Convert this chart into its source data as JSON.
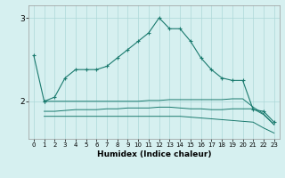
{
  "xlabel": "Humidex (Indice chaleur)",
  "x": [
    0,
    1,
    2,
    3,
    4,
    5,
    6,
    7,
    8,
    9,
    10,
    11,
    12,
    13,
    14,
    15,
    16,
    17,
    18,
    19,
    20,
    21,
    22,
    23
  ],
  "line1": [
    2.55,
    2.0,
    null,
    null,
    null,
    null,
    null,
    null,
    null,
    null,
    null,
    null,
    null,
    null,
    null,
    null,
    null,
    null,
    null,
    null,
    null,
    null,
    null,
    null
  ],
  "line2": [
    null,
    2.0,
    2.05,
    2.28,
    2.38,
    2.38,
    2.38,
    2.42,
    2.52,
    2.62,
    2.72,
    2.82,
    3.0,
    2.87,
    2.87,
    2.72,
    2.52,
    2.38,
    2.28,
    2.25,
    2.25,
    1.9,
    1.88,
    1.75
  ],
  "line3": [
    null,
    1.82,
    1.82,
    1.82,
    1.82,
    1.82,
    1.82,
    1.82,
    1.82,
    1.82,
    1.82,
    1.82,
    1.82,
    1.82,
    1.82,
    1.81,
    1.8,
    1.79,
    1.78,
    1.77,
    1.76,
    1.75,
    1.68,
    1.62
  ],
  "line4": [
    null,
    1.88,
    1.88,
    1.89,
    1.9,
    1.9,
    1.9,
    1.91,
    1.91,
    1.92,
    1.92,
    1.92,
    1.93,
    1.93,
    1.92,
    1.91,
    1.91,
    1.9,
    1.9,
    1.91,
    1.91,
    1.91,
    1.84,
    1.72
  ],
  "line5": [
    null,
    2.0,
    2.0,
    2.0,
    2.0,
    2.0,
    2.0,
    2.0,
    2.0,
    2.0,
    2.0,
    2.01,
    2.01,
    2.02,
    2.02,
    2.02,
    2.02,
    2.02,
    2.02,
    2.03,
    2.03,
    1.93,
    1.85,
    1.72
  ],
  "color": "#1a7a6e",
  "bg_color": "#d6f0f0",
  "grid_color": "#add8d8",
  "yticks": [
    2,
    3
  ],
  "ylim": [
    1.55,
    3.15
  ],
  "xlim": [
    -0.5,
    23.5
  ]
}
